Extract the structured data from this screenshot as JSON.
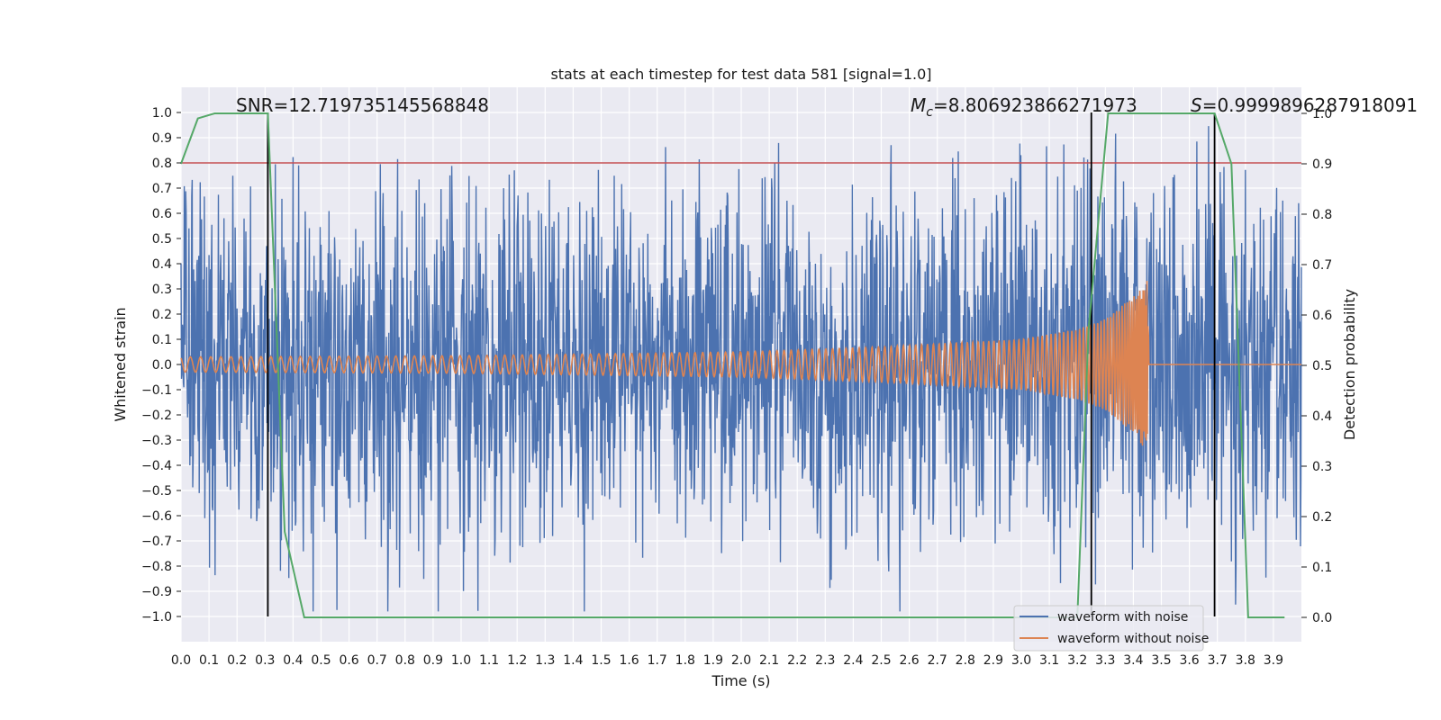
{
  "chart_data": {
    "type": "line",
    "title": "stats at each timestep for test data 581 [signal=1.0]",
    "xlabel": "Time (s)",
    "ylabel": "Whitened strain",
    "y2label": "Detection probability",
    "xlim": [
      0.0,
      4.0
    ],
    "ylim": [
      -1.1,
      1.1
    ],
    "y2lim": [
      -0.05,
      1.05
    ],
    "x_ticks": [
      "0.0",
      "0.1",
      "0.2",
      "0.3",
      "0.4",
      "0.5",
      "0.6",
      "0.7",
      "0.8",
      "0.9",
      "1.0",
      "1.1",
      "1.2",
      "1.3",
      "1.4",
      "1.5",
      "1.6",
      "1.7",
      "1.8",
      "1.9",
      "2.0",
      "2.1",
      "2.2",
      "2.3",
      "2.4",
      "2.5",
      "2.6",
      "2.7",
      "2.8",
      "2.9",
      "3.0",
      "3.1",
      "3.2",
      "3.3",
      "3.4",
      "3.5",
      "3.6",
      "3.7",
      "3.8",
      "3.9"
    ],
    "y_ticks": [
      "1.0",
      "0.9",
      "0.8",
      "0.7",
      "0.6",
      "0.5",
      "0.4",
      "0.3",
      "0.2",
      "0.1",
      "0.0",
      "−0.1",
      "−0.2",
      "−0.3",
      "−0.4",
      "−0.5",
      "−0.6",
      "−0.7",
      "−0.8",
      "−0.9",
      "−1.0"
    ],
    "y2_ticks": [
      "1.0",
      "0.9",
      "0.8",
      "0.7",
      "0.6",
      "0.5",
      "0.4",
      "0.3",
      "0.2",
      "0.1",
      "0.0"
    ],
    "annotations": {
      "snr": "SNR=12.719735145568848",
      "mc": "=8.806923866271973",
      "mc_symbol": "M",
      "mc_sub": "c",
      "s": "=0.9999896287918091",
      "s_symbol": "S"
    },
    "threshold_y": 0.8,
    "vlines_x": [
      0.31,
      3.25,
      3.69
    ],
    "detection_probability": {
      "x": [
        0.0,
        0.06,
        0.12,
        0.18,
        0.25,
        0.31,
        0.37,
        0.44,
        3.2,
        3.24,
        3.31,
        3.69,
        3.75,
        3.81,
        3.94
      ],
      "y": [
        0.9,
        0.99,
        1.0,
        1.0,
        1.0,
        1.0,
        0.17,
        0.0,
        0.0,
        0.57,
        1.0,
        1.0,
        0.9,
        0.0,
        0.0
      ]
    },
    "noise_envelope": {
      "x": [
        0.0,
        0.5,
        1.0,
        1.5,
        2.0,
        2.5,
        3.0,
        3.5,
        4.0
      ],
      "amplitude": [
        0.5,
        0.5,
        0.5,
        0.48,
        0.48,
        0.5,
        0.5,
        0.5,
        0.5
      ]
    },
    "signal_envelope": {
      "x": [
        0.0,
        1.0,
        2.0,
        2.5,
        3.0,
        3.2,
        3.3,
        3.4,
        3.45,
        3.46
      ],
      "amplitude": [
        0.03,
        0.035,
        0.05,
        0.07,
        0.1,
        0.14,
        0.18,
        0.27,
        0.35,
        0.0
      ]
    },
    "series": [
      {
        "name": "waveform with noise",
        "color": "#4c72b0"
      },
      {
        "name": "waveform without noise",
        "color": "#dd8452"
      }
    ],
    "prob_color": "#55a868",
    "threshold_color": "#c44e52",
    "legend_position": "lower-right"
  }
}
